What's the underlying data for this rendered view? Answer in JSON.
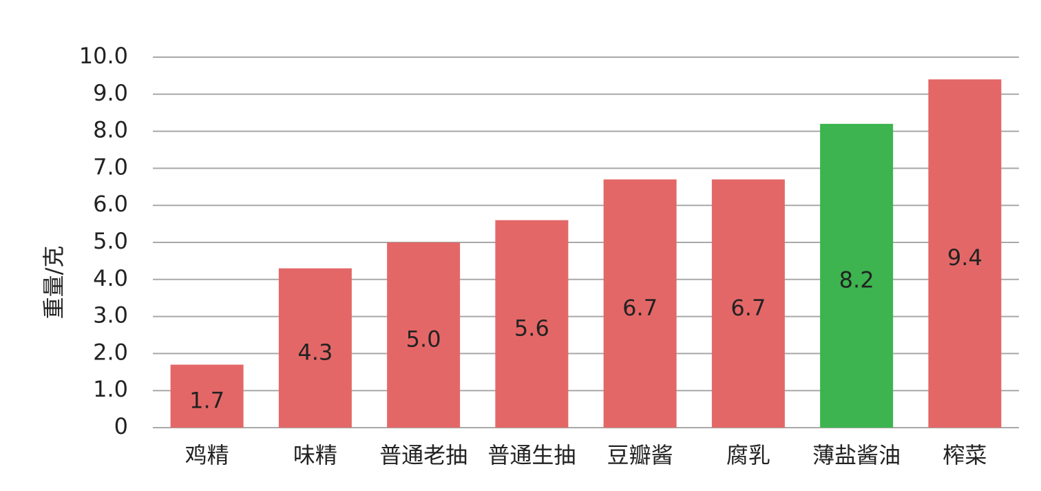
{
  "chart_data": {
    "type": "bar",
    "y_label": "重量/克",
    "categories": [
      "鸡精",
      "味精",
      "普通老抽",
      "普通生抽",
      "豆瓣酱",
      "腐乳",
      "薄盐酱油",
      "榨菜"
    ],
    "values": [
      1.7,
      4.3,
      5.0,
      5.6,
      6.7,
      6.7,
      8.2,
      9.4
    ],
    "value_labels": [
      "1.7",
      "4.3",
      "5.0",
      "5.6",
      "6.7",
      "6.7",
      "8.2",
      "9.4"
    ],
    "colors": [
      "#e46767",
      "#e46767",
      "#e46767",
      "#e46767",
      "#e46767",
      "#e46767",
      "#3db44f",
      "#e46767"
    ],
    "ylim": [
      0,
      10
    ],
    "yticks": [
      0,
      {
        "value": 1,
        "label": "1.0"
      },
      {
        "value": 2,
        "label": "2.0"
      },
      {
        "value": 3,
        "label": "3.0"
      },
      {
        "value": 4,
        "label": "4.0"
      },
      {
        "value": 5,
        "label": "5.0"
      },
      {
        "value": 6,
        "label": "6.0"
      },
      {
        "value": 7,
        "label": "7.0"
      },
      {
        "value": 8,
        "label": "8.0"
      },
      {
        "value": 9,
        "label": "9.0"
      },
      {
        "value": 10,
        "label": "10.0"
      }
    ],
    "grid": true
  }
}
